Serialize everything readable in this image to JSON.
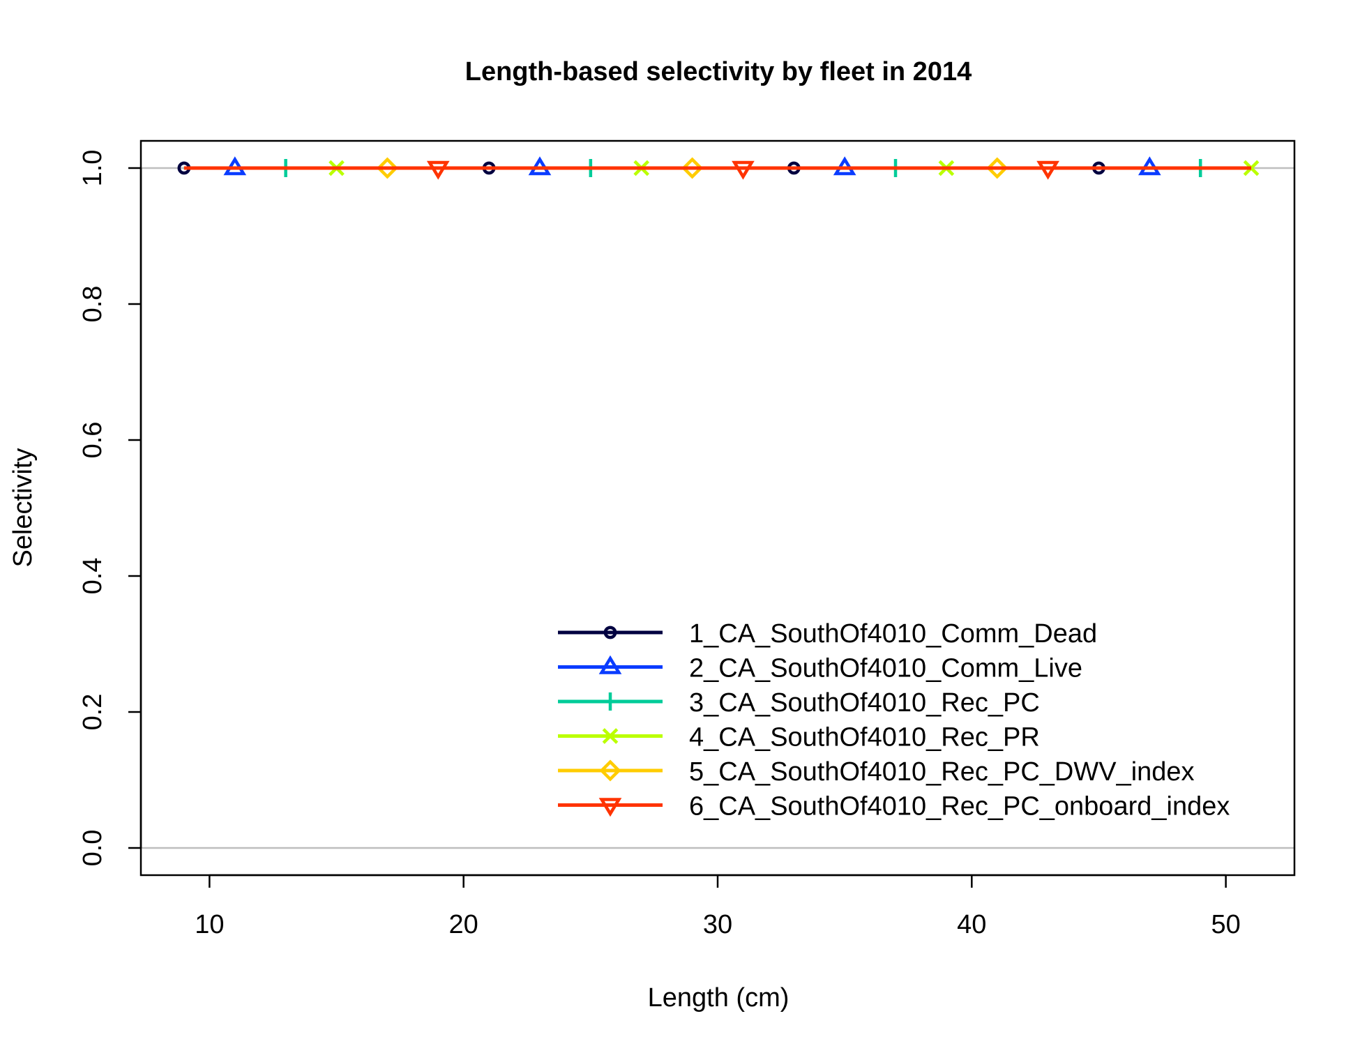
{
  "chart_data": {
    "type": "line",
    "title": "Length-based selectivity by fleet in 2014",
    "xlabel": "Length (cm)",
    "ylabel": "Selectivity",
    "xlim": [
      7.3,
      52.7
    ],
    "ylim": [
      -0.04,
      1.04
    ],
    "xticks": [
      "10",
      "20",
      "30",
      "40",
      "50"
    ],
    "yticks": [
      "0.0",
      "0.2",
      "0.4",
      "0.6",
      "0.8",
      "1.0"
    ],
    "reference_lines": [
      0,
      1
    ],
    "grid": false,
    "legend_position": "bottom-right",
    "x": [
      9,
      11,
      13,
      15,
      17,
      19,
      21,
      23,
      25,
      27,
      29,
      31,
      33,
      35,
      37,
      39,
      41,
      43,
      45,
      47,
      49,
      51
    ],
    "series": [
      {
        "name": "1_CA_SouthOf4010_Comm_Dead",
        "color": "#000040",
        "marker": "circle",
        "values": [
          1,
          1,
          1,
          1,
          1,
          1,
          1,
          1,
          1,
          1,
          1,
          1,
          1,
          1,
          1,
          1,
          1,
          1,
          1,
          1,
          1,
          1
        ]
      },
      {
        "name": "2_CA_SouthOf4010_Comm_Live",
        "color": "#0a3cff",
        "marker": "triangle-up",
        "values": [
          1,
          1,
          1,
          1,
          1,
          1,
          1,
          1,
          1,
          1,
          1,
          1,
          1,
          1,
          1,
          1,
          1,
          1,
          1,
          1,
          1,
          1
        ]
      },
      {
        "name": "3_CA_SouthOf4010_Rec_PC",
        "color": "#00cc99",
        "marker": "plus",
        "values": [
          1,
          1,
          1,
          1,
          1,
          1,
          1,
          1,
          1,
          1,
          1,
          1,
          1,
          1,
          1,
          1,
          1,
          1,
          1,
          1,
          1,
          1
        ]
      },
      {
        "name": "4_CA_SouthOf4010_Rec_PR",
        "color": "#bbff00",
        "marker": "cross",
        "values": [
          1,
          1,
          1,
          1,
          1,
          1,
          1,
          1,
          1,
          1,
          1,
          1,
          1,
          1,
          1,
          1,
          1,
          1,
          1,
          1,
          1,
          1
        ]
      },
      {
        "name": "5_CA_SouthOf4010_Rec_PC_DWV_index",
        "color": "#ffcc00",
        "marker": "diamond",
        "values": [
          1,
          1,
          1,
          1,
          1,
          1,
          1,
          1,
          1,
          1,
          1,
          1,
          1,
          1,
          1,
          1,
          1,
          1,
          1,
          1,
          1,
          1
        ]
      },
      {
        "name": "6_CA_SouthOf4010_Rec_PC_onboard_index",
        "color": "#ff3300",
        "marker": "triangle-down",
        "values": [
          1,
          1,
          1,
          1,
          1,
          1,
          1,
          1,
          1,
          1,
          1,
          1,
          1,
          1,
          1,
          1,
          1,
          1,
          1,
          1,
          1,
          1
        ]
      }
    ]
  }
}
